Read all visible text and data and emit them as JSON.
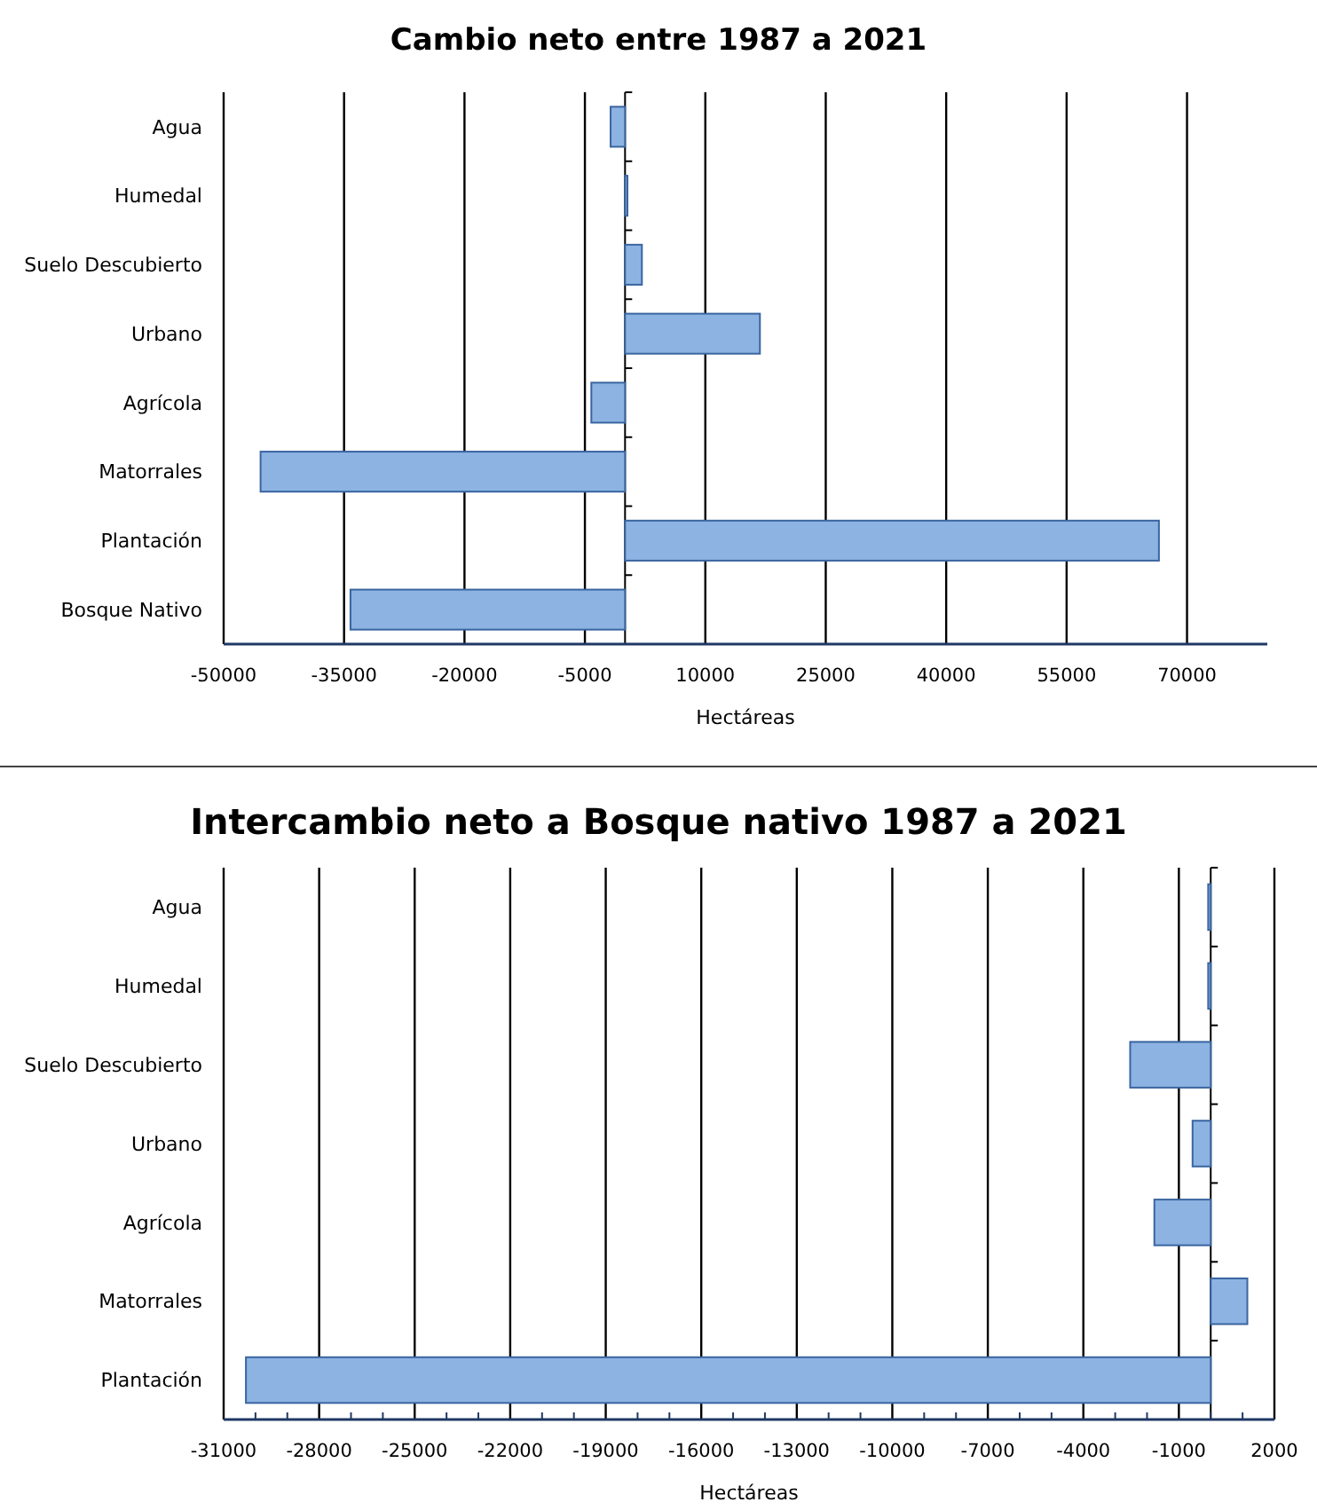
{
  "chart_data": [
    {
      "type": "bar",
      "orientation": "horizontal",
      "title": "Cambio neto entre 1987 a 2021",
      "xlabel": "Hectáreas",
      "categories": [
        "Agua",
        "Humedal",
        "Suelo Descubierto",
        "Urbano",
        "Agrícola",
        "Matorrales",
        "Plantación",
        "Bosque Nativo"
      ],
      "values": [
        -1800,
        300,
        2100,
        16800,
        -4200,
        -45400,
        66500,
        -34200
      ],
      "color": "#8db3e2",
      "xlim": [
        -50000,
        80000
      ],
      "xticks": [
        -50000,
        -35000,
        -20000,
        -5000,
        10000,
        25000,
        40000,
        55000,
        70000
      ],
      "grid": "x"
    },
    {
      "type": "bar",
      "orientation": "horizontal",
      "title": "Intercambio neto a Bosque nativo 1987 a 2021",
      "xlabel": "Hectáreas",
      "categories": [
        "Agua",
        "Humedal",
        "Suelo Descubierto",
        "Urbano",
        "Agrícola",
        "Matorrales",
        "Plantación"
      ],
      "values": [
        -80,
        -80,
        -2530,
        -570,
        -1770,
        1150,
        -30300
      ],
      "color": "#8db3e2",
      "xlim": [
        -31000,
        2000
      ],
      "xticks": [
        -31000,
        {
          "value": -30000,
          "label": null
        },
        {
          "value": -29000,
          "label": null
        },
        -28000,
        {
          "value": -27000,
          "label": null
        },
        {
          "value": -26000,
          "label": null
        },
        -25000,
        {
          "value": -24000,
          "label": null
        },
        {
          "value": -23000,
          "label": null
        },
        -22000,
        {
          "value": -21000,
          "label": null
        },
        {
          "value": -20000,
          "label": null
        },
        -19000,
        {
          "value": -18000,
          "label": null
        },
        {
          "value": -17000,
          "label": null
        },
        -16000,
        {
          "value": -15000,
          "label": null
        },
        {
          "value": -14000,
          "label": null
        },
        -13000,
        {
          "value": -12000,
          "label": null
        },
        {
          "value": -11000,
          "label": null
        },
        -10000,
        {
          "value": -9000,
          "label": null
        },
        {
          "value": -8000,
          "label": null
        },
        -7000,
        {
          "value": -6000,
          "label": null
        },
        {
          "value": -5000,
          "label": null
        },
        -4000,
        {
          "value": -3000,
          "label": null
        },
        {
          "value": -2000,
          "label": null
        },
        -1000,
        {
          "value": 0,
          "label": null
        },
        {
          "value": 1000,
          "label": null
        },
        2000
      ],
      "grid": "x"
    }
  ]
}
